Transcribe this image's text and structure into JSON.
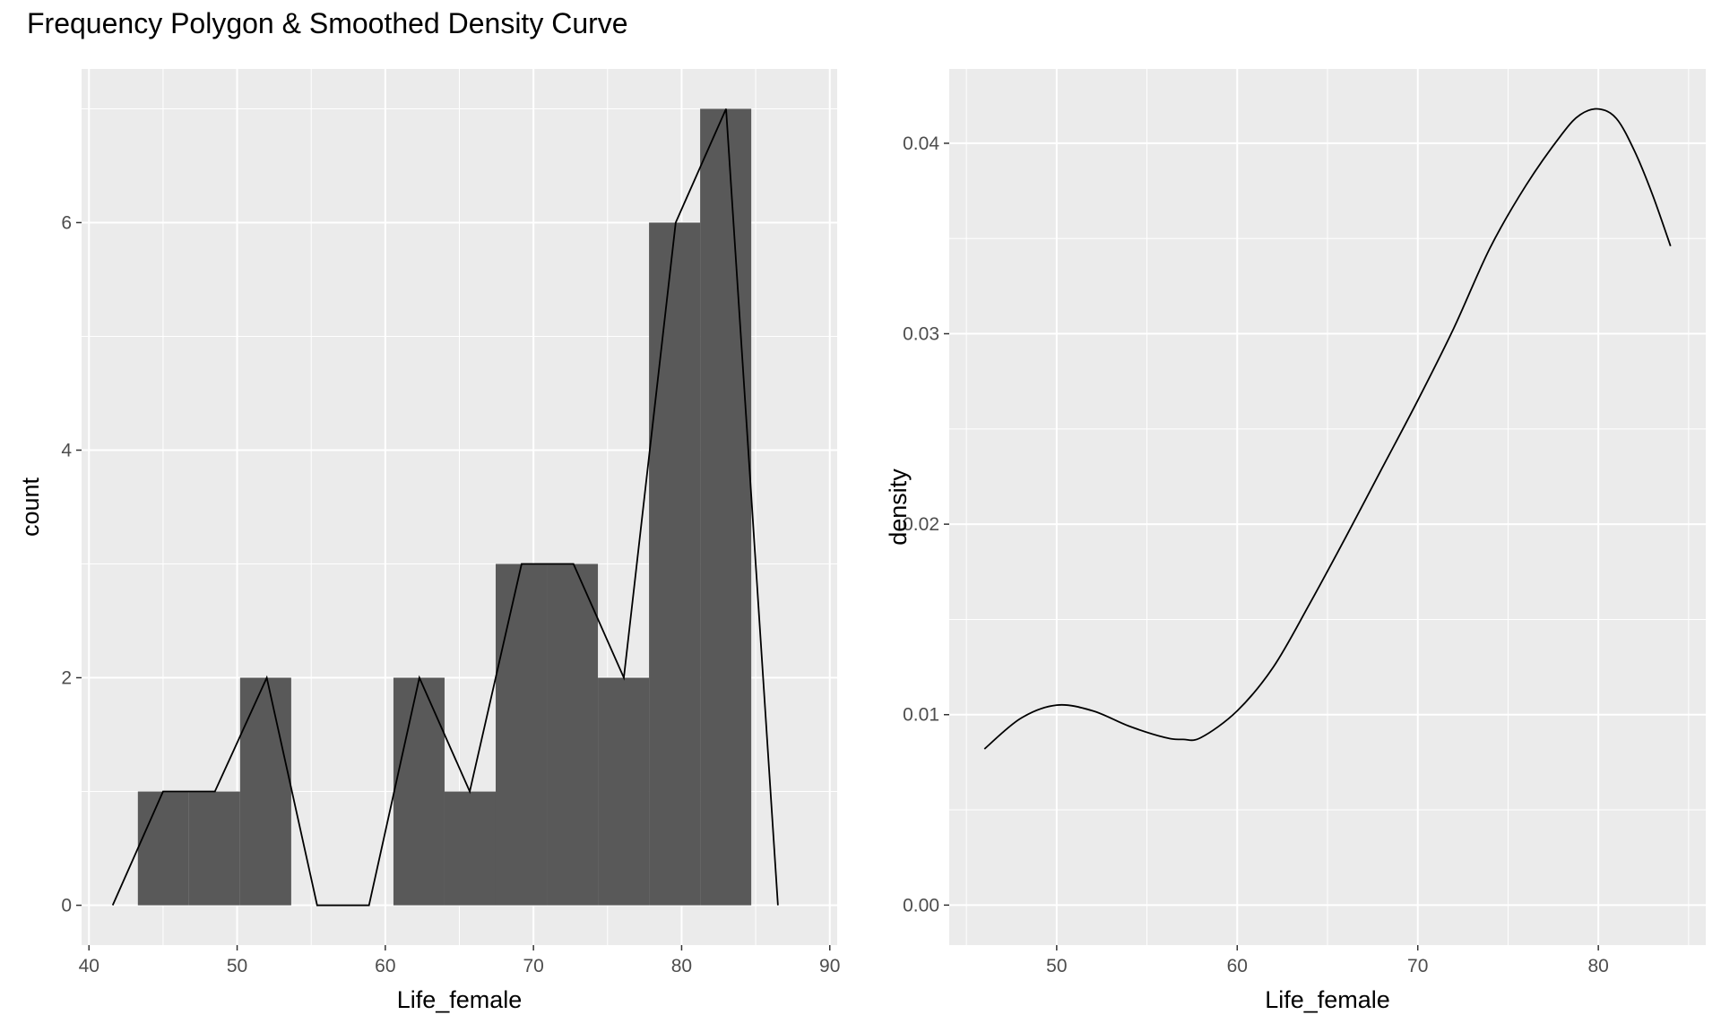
{
  "title": "Frequency Polygon & Smoothed Density Curve",
  "chart_data": [
    {
      "type": "bar",
      "subtype": "histogram-with-frequency-polygon",
      "xlabel": "Life_female",
      "ylabel": "count",
      "xlim": [
        39.5,
        90.5
      ],
      "ylim": [
        -0.35,
        7.35
      ],
      "x_ticks": [
        40,
        50,
        60,
        70,
        80,
        90
      ],
      "y_ticks": [
        0,
        2,
        4,
        6
      ],
      "grid": true,
      "bin_width": 3.45,
      "bins": [
        {
          "start": 43.3,
          "end": 46.75,
          "count": 1
        },
        {
          "start": 46.75,
          "end": 50.2,
          "count": 1
        },
        {
          "start": 50.2,
          "end": 53.65,
          "count": 2
        },
        {
          "start": 53.65,
          "end": 57.1,
          "count": 0
        },
        {
          "start": 57.1,
          "end": 60.55,
          "count": 0
        },
        {
          "start": 60.55,
          "end": 64.0,
          "count": 2
        },
        {
          "start": 64.0,
          "end": 67.45,
          "count": 1
        },
        {
          "start": 67.45,
          "end": 70.9,
          "count": 3
        },
        {
          "start": 70.9,
          "end": 74.35,
          "count": 3
        },
        {
          "start": 74.35,
          "end": 77.8,
          "count": 2
        },
        {
          "start": 77.8,
          "end": 81.25,
          "count": 6
        },
        {
          "start": 81.25,
          "end": 84.7,
          "count": 7
        }
      ],
      "polygon": {
        "x": [
          41.6,
          45.0,
          48.5,
          52.0,
          55.4,
          58.9,
          62.3,
          65.7,
          69.2,
          72.7,
          76.1,
          79.6,
          83.0,
          86.5
        ],
        "y": [
          0,
          1,
          1,
          2,
          0,
          0,
          2,
          1,
          3,
          3,
          2,
          6,
          7,
          0
        ]
      },
      "colors": {
        "bar": "#595959",
        "line": "#000000",
        "panel": "#ebebeb"
      }
    },
    {
      "type": "line",
      "subtype": "density",
      "xlabel": "Life_female",
      "ylabel": "density",
      "xlim": [
        44.05,
        85.95
      ],
      "ylim": [
        -0.0021,
        0.0439
      ],
      "x_ticks": [
        50,
        60,
        70,
        80
      ],
      "y_ticks": [
        "0.00",
        "0.01",
        "0.02",
        "0.03",
        "0.04"
      ],
      "grid": true,
      "x": [
        46.0,
        48.0,
        50.0,
        52.0,
        54.0,
        56.0,
        57.0,
        58.0,
        60.0,
        62.0,
        64.0,
        66.0,
        68.0,
        70.0,
        72.0,
        74.0,
        76.0,
        78.0,
        79.0,
        80.0,
        81.0,
        82.0,
        83.0,
        84.0
      ],
      "y": [
        0.0082,
        0.0098,
        0.0105,
        0.0102,
        0.0094,
        0.0088,
        0.0087,
        0.0088,
        0.0102,
        0.0125,
        0.0158,
        0.0193,
        0.0229,
        0.0265,
        0.0303,
        0.0345,
        0.0378,
        0.0405,
        0.0415,
        0.0418,
        0.0413,
        0.0396,
        0.0373,
        0.0346
      ],
      "colors": {
        "line": "#000000",
        "panel": "#ebebeb"
      }
    }
  ]
}
